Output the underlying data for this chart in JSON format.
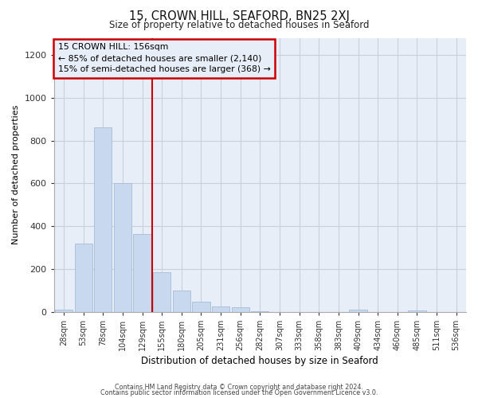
{
  "title": "15, CROWN HILL, SEAFORD, BN25 2XJ",
  "subtitle": "Size of property relative to detached houses in Seaford",
  "xlabel": "Distribution of detached houses by size in Seaford",
  "ylabel": "Number of detached properties",
  "footer_line1": "Contains HM Land Registry data © Crown copyright and database right 2024.",
  "footer_line2": "Contains public sector information licensed under the Open Government Licence v3.0.",
  "bar_labels": [
    "28sqm",
    "53sqm",
    "78sqm",
    "104sqm",
    "129sqm",
    "155sqm",
    "180sqm",
    "205sqm",
    "231sqm",
    "256sqm",
    "282sqm",
    "307sqm",
    "333sqm",
    "358sqm",
    "383sqm",
    "409sqm",
    "434sqm",
    "460sqm",
    "485sqm",
    "511sqm",
    "536sqm"
  ],
  "bar_values": [
    10,
    320,
    860,
    600,
    365,
    185,
    100,
    47,
    25,
    20,
    3,
    0,
    0,
    0,
    0,
    10,
    0,
    0,
    5,
    0,
    0
  ],
  "bar_color": "#c8d8ee",
  "bar_edgecolor": "#a8bcd8",
  "annotation_line1": "15 CROWN HILL: 156sqm",
  "annotation_line2": "← 85% of detached houses are smaller (2,140)",
  "annotation_line3": "15% of semi-detached houses are larger (368) →",
  "vline_color": "#cc0000",
  "annotation_box_edgecolor": "#cc0000",
  "ylim": [
    0,
    1280
  ],
  "yticks": [
    0,
    200,
    400,
    600,
    800,
    1000,
    1200
  ],
  "grid_color": "#c8d0dc",
  "background_color": "#ffffff",
  "plot_bg_color": "#e8eef8"
}
